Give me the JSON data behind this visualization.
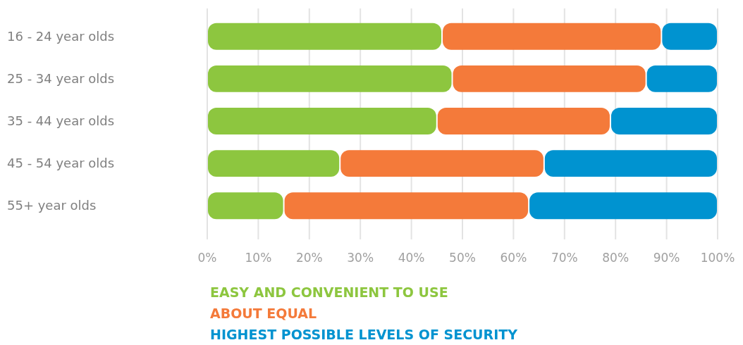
{
  "chart_data": {
    "type": "bar",
    "orientation": "horizontal",
    "stacked": true,
    "categories": [
      "16 - 24 year olds",
      "25 - 34 year olds",
      "35 - 44 year olds",
      "45 - 54 year olds",
      "55+ year olds"
    ],
    "series": [
      {
        "name": "EASY AND CONVENIENT TO USE",
        "color": "#8dc63f",
        "values": [
          46,
          48,
          45,
          26,
          15
        ]
      },
      {
        "name": "ABOUT EQUAL",
        "color": "#f47a3a",
        "values": [
          43,
          38,
          34,
          40,
          48
        ]
      },
      {
        "name": "HIGHEST POSSIBLE LEVELS OF SECURITY",
        "color": "#0093d0",
        "values": [
          11,
          14,
          21,
          34,
          37
        ]
      }
    ],
    "xlim": [
      0,
      100
    ],
    "xticks": [
      {
        "value": 0,
        "label": "0%"
      },
      {
        "value": 10,
        "label": "10%"
      },
      {
        "value": 20,
        "label": "20%"
      },
      {
        "value": 30,
        "label": "30%"
      },
      {
        "value": 40,
        "label": "40%"
      },
      {
        "value": 50,
        "label": "50%"
      },
      {
        "value": 60,
        "label": "60%"
      },
      {
        "value": 70,
        "label": "70%"
      },
      {
        "value": 80,
        "label": "80%"
      },
      {
        "value": 90,
        "label": "90%"
      },
      {
        "value": 100,
        "label": "100%"
      }
    ],
    "grid": "x",
    "legend": "bottom left"
  }
}
